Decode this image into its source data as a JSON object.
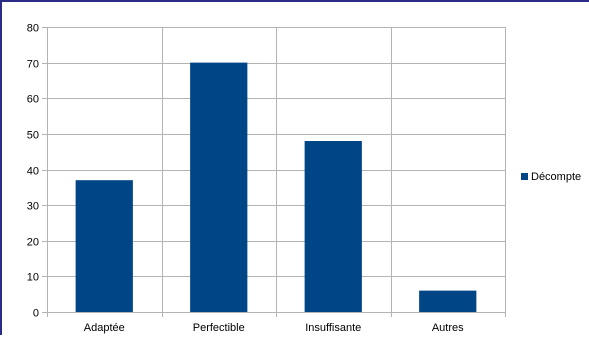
{
  "chart_data": {
    "type": "bar",
    "categories": [
      "Adaptée",
      "Perfectible",
      "Insuffisante",
      "Autres"
    ],
    "series": [
      {
        "name": "Décompte",
        "values": [
          37,
          70,
          48,
          6
        ],
        "color": "#004586"
      }
    ],
    "title": "",
    "xlabel": "",
    "ylabel": "",
    "ylim": [
      0,
      80
    ],
    "yticks": [
      0,
      10,
      20,
      30,
      40,
      50,
      60,
      70,
      80
    ],
    "grid": true,
    "legend_position": "right"
  }
}
